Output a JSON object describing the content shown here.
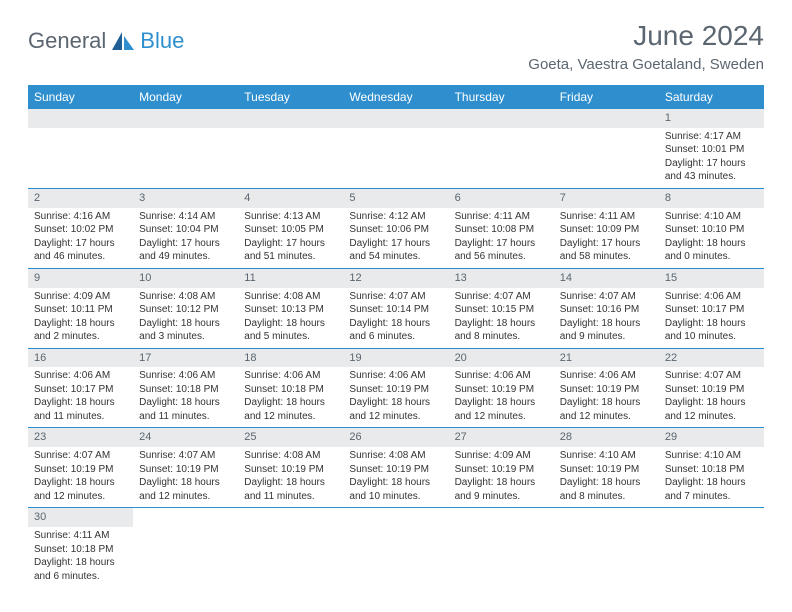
{
  "logo": {
    "word1": "General",
    "word2": "Blue"
  },
  "header": {
    "title": "June 2024",
    "location": "Goeta, Vaestra Goetaland, Sweden"
  },
  "colors": {
    "accent": "#2f8fce",
    "bar": "#e9eaeb",
    "text_muted": "#5b6670"
  },
  "days_of_week": [
    "Sunday",
    "Monday",
    "Tuesday",
    "Wednesday",
    "Thursday",
    "Friday",
    "Saturday"
  ],
  "weeks": [
    [
      null,
      null,
      null,
      null,
      null,
      null,
      {
        "n": "1",
        "sunrise": "Sunrise: 4:17 AM",
        "sunset": "Sunset: 10:01 PM",
        "daylight": "Daylight: 17 hours and 43 minutes."
      }
    ],
    [
      {
        "n": "2",
        "sunrise": "Sunrise: 4:16 AM",
        "sunset": "Sunset: 10:02 PM",
        "daylight": "Daylight: 17 hours and 46 minutes."
      },
      {
        "n": "3",
        "sunrise": "Sunrise: 4:14 AM",
        "sunset": "Sunset: 10:04 PM",
        "daylight": "Daylight: 17 hours and 49 minutes."
      },
      {
        "n": "4",
        "sunrise": "Sunrise: 4:13 AM",
        "sunset": "Sunset: 10:05 PM",
        "daylight": "Daylight: 17 hours and 51 minutes."
      },
      {
        "n": "5",
        "sunrise": "Sunrise: 4:12 AM",
        "sunset": "Sunset: 10:06 PM",
        "daylight": "Daylight: 17 hours and 54 minutes."
      },
      {
        "n": "6",
        "sunrise": "Sunrise: 4:11 AM",
        "sunset": "Sunset: 10:08 PM",
        "daylight": "Daylight: 17 hours and 56 minutes."
      },
      {
        "n": "7",
        "sunrise": "Sunrise: 4:11 AM",
        "sunset": "Sunset: 10:09 PM",
        "daylight": "Daylight: 17 hours and 58 minutes."
      },
      {
        "n": "8",
        "sunrise": "Sunrise: 4:10 AM",
        "sunset": "Sunset: 10:10 PM",
        "daylight": "Daylight: 18 hours and 0 minutes."
      }
    ],
    [
      {
        "n": "9",
        "sunrise": "Sunrise: 4:09 AM",
        "sunset": "Sunset: 10:11 PM",
        "daylight": "Daylight: 18 hours and 2 minutes."
      },
      {
        "n": "10",
        "sunrise": "Sunrise: 4:08 AM",
        "sunset": "Sunset: 10:12 PM",
        "daylight": "Daylight: 18 hours and 3 minutes."
      },
      {
        "n": "11",
        "sunrise": "Sunrise: 4:08 AM",
        "sunset": "Sunset: 10:13 PM",
        "daylight": "Daylight: 18 hours and 5 minutes."
      },
      {
        "n": "12",
        "sunrise": "Sunrise: 4:07 AM",
        "sunset": "Sunset: 10:14 PM",
        "daylight": "Daylight: 18 hours and 6 minutes."
      },
      {
        "n": "13",
        "sunrise": "Sunrise: 4:07 AM",
        "sunset": "Sunset: 10:15 PM",
        "daylight": "Daylight: 18 hours and 8 minutes."
      },
      {
        "n": "14",
        "sunrise": "Sunrise: 4:07 AM",
        "sunset": "Sunset: 10:16 PM",
        "daylight": "Daylight: 18 hours and 9 minutes."
      },
      {
        "n": "15",
        "sunrise": "Sunrise: 4:06 AM",
        "sunset": "Sunset: 10:17 PM",
        "daylight": "Daylight: 18 hours and 10 minutes."
      }
    ],
    [
      {
        "n": "16",
        "sunrise": "Sunrise: 4:06 AM",
        "sunset": "Sunset: 10:17 PM",
        "daylight": "Daylight: 18 hours and 11 minutes."
      },
      {
        "n": "17",
        "sunrise": "Sunrise: 4:06 AM",
        "sunset": "Sunset: 10:18 PM",
        "daylight": "Daylight: 18 hours and 11 minutes."
      },
      {
        "n": "18",
        "sunrise": "Sunrise: 4:06 AM",
        "sunset": "Sunset: 10:18 PM",
        "daylight": "Daylight: 18 hours and 12 minutes."
      },
      {
        "n": "19",
        "sunrise": "Sunrise: 4:06 AM",
        "sunset": "Sunset: 10:19 PM",
        "daylight": "Daylight: 18 hours and 12 minutes."
      },
      {
        "n": "20",
        "sunrise": "Sunrise: 4:06 AM",
        "sunset": "Sunset: 10:19 PM",
        "daylight": "Daylight: 18 hours and 12 minutes."
      },
      {
        "n": "21",
        "sunrise": "Sunrise: 4:06 AM",
        "sunset": "Sunset: 10:19 PM",
        "daylight": "Daylight: 18 hours and 12 minutes."
      },
      {
        "n": "22",
        "sunrise": "Sunrise: 4:07 AM",
        "sunset": "Sunset: 10:19 PM",
        "daylight": "Daylight: 18 hours and 12 minutes."
      }
    ],
    [
      {
        "n": "23",
        "sunrise": "Sunrise: 4:07 AM",
        "sunset": "Sunset: 10:19 PM",
        "daylight": "Daylight: 18 hours and 12 minutes."
      },
      {
        "n": "24",
        "sunrise": "Sunrise: 4:07 AM",
        "sunset": "Sunset: 10:19 PM",
        "daylight": "Daylight: 18 hours and 12 minutes."
      },
      {
        "n": "25",
        "sunrise": "Sunrise: 4:08 AM",
        "sunset": "Sunset: 10:19 PM",
        "daylight": "Daylight: 18 hours and 11 minutes."
      },
      {
        "n": "26",
        "sunrise": "Sunrise: 4:08 AM",
        "sunset": "Sunset: 10:19 PM",
        "daylight": "Daylight: 18 hours and 10 minutes."
      },
      {
        "n": "27",
        "sunrise": "Sunrise: 4:09 AM",
        "sunset": "Sunset: 10:19 PM",
        "daylight": "Daylight: 18 hours and 9 minutes."
      },
      {
        "n": "28",
        "sunrise": "Sunrise: 4:10 AM",
        "sunset": "Sunset: 10:19 PM",
        "daylight": "Daylight: 18 hours and 8 minutes."
      },
      {
        "n": "29",
        "sunrise": "Sunrise: 4:10 AM",
        "sunset": "Sunset: 10:18 PM",
        "daylight": "Daylight: 18 hours and 7 minutes."
      }
    ],
    [
      {
        "n": "30",
        "sunrise": "Sunrise: 4:11 AM",
        "sunset": "Sunset: 10:18 PM",
        "daylight": "Daylight: 18 hours and 6 minutes."
      },
      null,
      null,
      null,
      null,
      null,
      null
    ]
  ]
}
